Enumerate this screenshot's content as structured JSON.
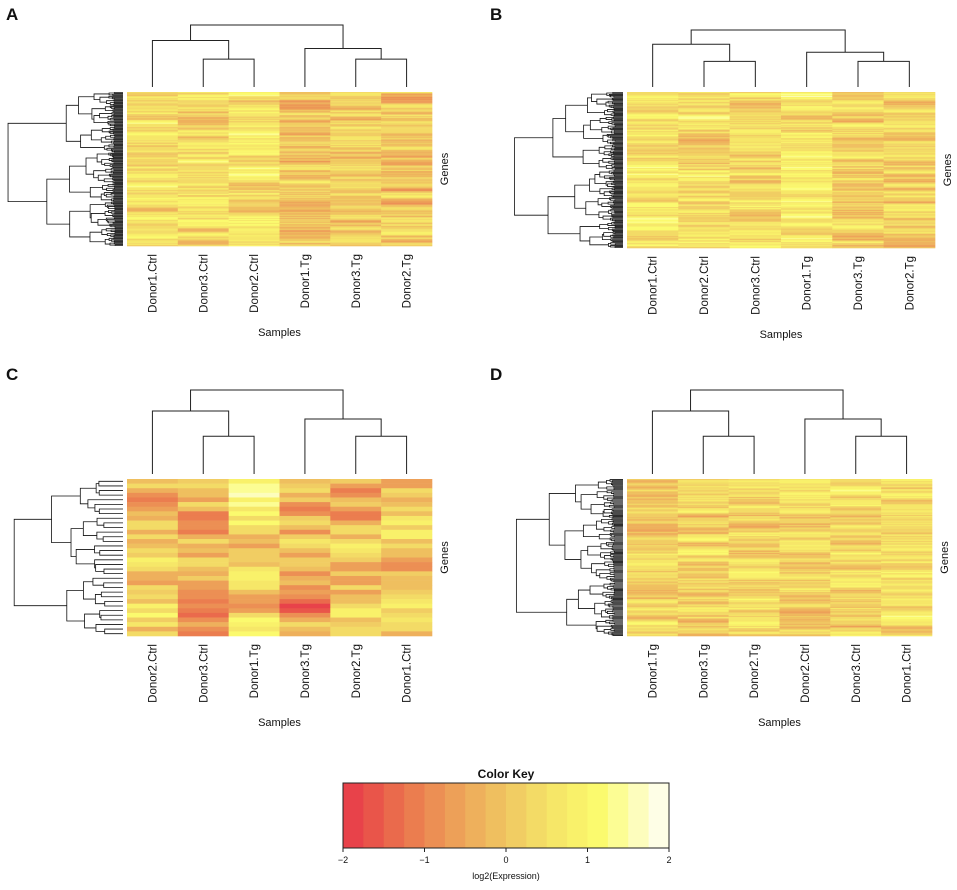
{
  "chart_data": [
    {
      "type": "heatmap",
      "panel": "A",
      "samples": [
        "Donor1.Ctrl",
        "Donor3.Ctrl",
        "Donor2.Ctrl",
        "Donor1.Tg",
        "Donor3.Tg",
        "Donor2.Tg"
      ],
      "xlabel": "Samples",
      "ylabel": "Genes",
      "gene_count": 160,
      "column_groups": [
        [
          0,
          1,
          2
        ],
        [
          3,
          4,
          5
        ]
      ],
      "column_means": [
        0.55,
        0.35,
        0.55,
        -0.2,
        0.1,
        0.05
      ],
      "pattern_seed": 11
    },
    {
      "type": "heatmap",
      "panel": "B",
      "samples": [
        "Donor1.Ctrl",
        "Donor2.Ctrl",
        "Donor3.Ctrl",
        "Donor1.Tg",
        "Donor3.Tg",
        "Donor2.Tg"
      ],
      "xlabel": "Samples",
      "ylabel": "Genes",
      "gene_count": 160,
      "column_groups": [
        [
          0,
          1,
          2
        ],
        [
          3,
          4,
          5
        ]
      ],
      "column_means": [
        0.6,
        0.45,
        0.45,
        0.65,
        0.2,
        0.1
      ],
      "pattern_seed": 23
    },
    {
      "type": "heatmap",
      "panel": "C",
      "samples": [
        "Donor2.Ctrl",
        "Donor3.Ctrl",
        "Donor1.Tg",
        "Donor3.Tg",
        "Donor2.Tg",
        "Donor1.Ctrl"
      ],
      "xlabel": "Samples",
      "ylabel": "Genes",
      "gene_count": 34,
      "column_groups": [
        [
          0,
          1,
          2
        ],
        [
          3,
          4,
          5
        ]
      ],
      "column_means": [
        0.3,
        -0.3,
        0.4,
        -0.6,
        0.0,
        0.2
      ],
      "pattern_seed": 37
    },
    {
      "type": "heatmap",
      "panel": "D",
      "samples": [
        "Donor1.Tg",
        "Donor3.Tg",
        "Donor2.Tg",
        "Donor2.Ctrl",
        "Donor3.Ctrl",
        "Donor1.Ctrl"
      ],
      "xlabel": "Samples",
      "ylabel": "Genes",
      "gene_count": 140,
      "column_groups": [
        [
          0,
          1,
          2
        ],
        [
          3,
          4,
          5
        ]
      ],
      "column_means": [
        0.3,
        0.2,
        0.3,
        0.35,
        0.4,
        0.45
      ],
      "pattern_seed": 53
    }
  ],
  "color_key": {
    "title": "Color Key",
    "xlabel": "log2(Expression)",
    "range": [
      -2,
      2
    ],
    "ticks": [
      "−2",
      "−1",
      "0",
      "1",
      "2"
    ],
    "tick_values": [
      -2,
      -1,
      0,
      1,
      2
    ],
    "bins": 16,
    "colors": [
      "#e8424a",
      "#e9554a",
      "#ea6a4c",
      "#eb7d4f",
      "#ec8f54",
      "#edA058",
      "#eeb05c",
      "#efbf5f",
      "#f1cd63",
      "#f3db66",
      "#f6e768",
      "#f9f16a",
      "#fbfa6e",
      "#fcfd94",
      "#fdfdbd",
      "#fefee6"
    ]
  }
}
